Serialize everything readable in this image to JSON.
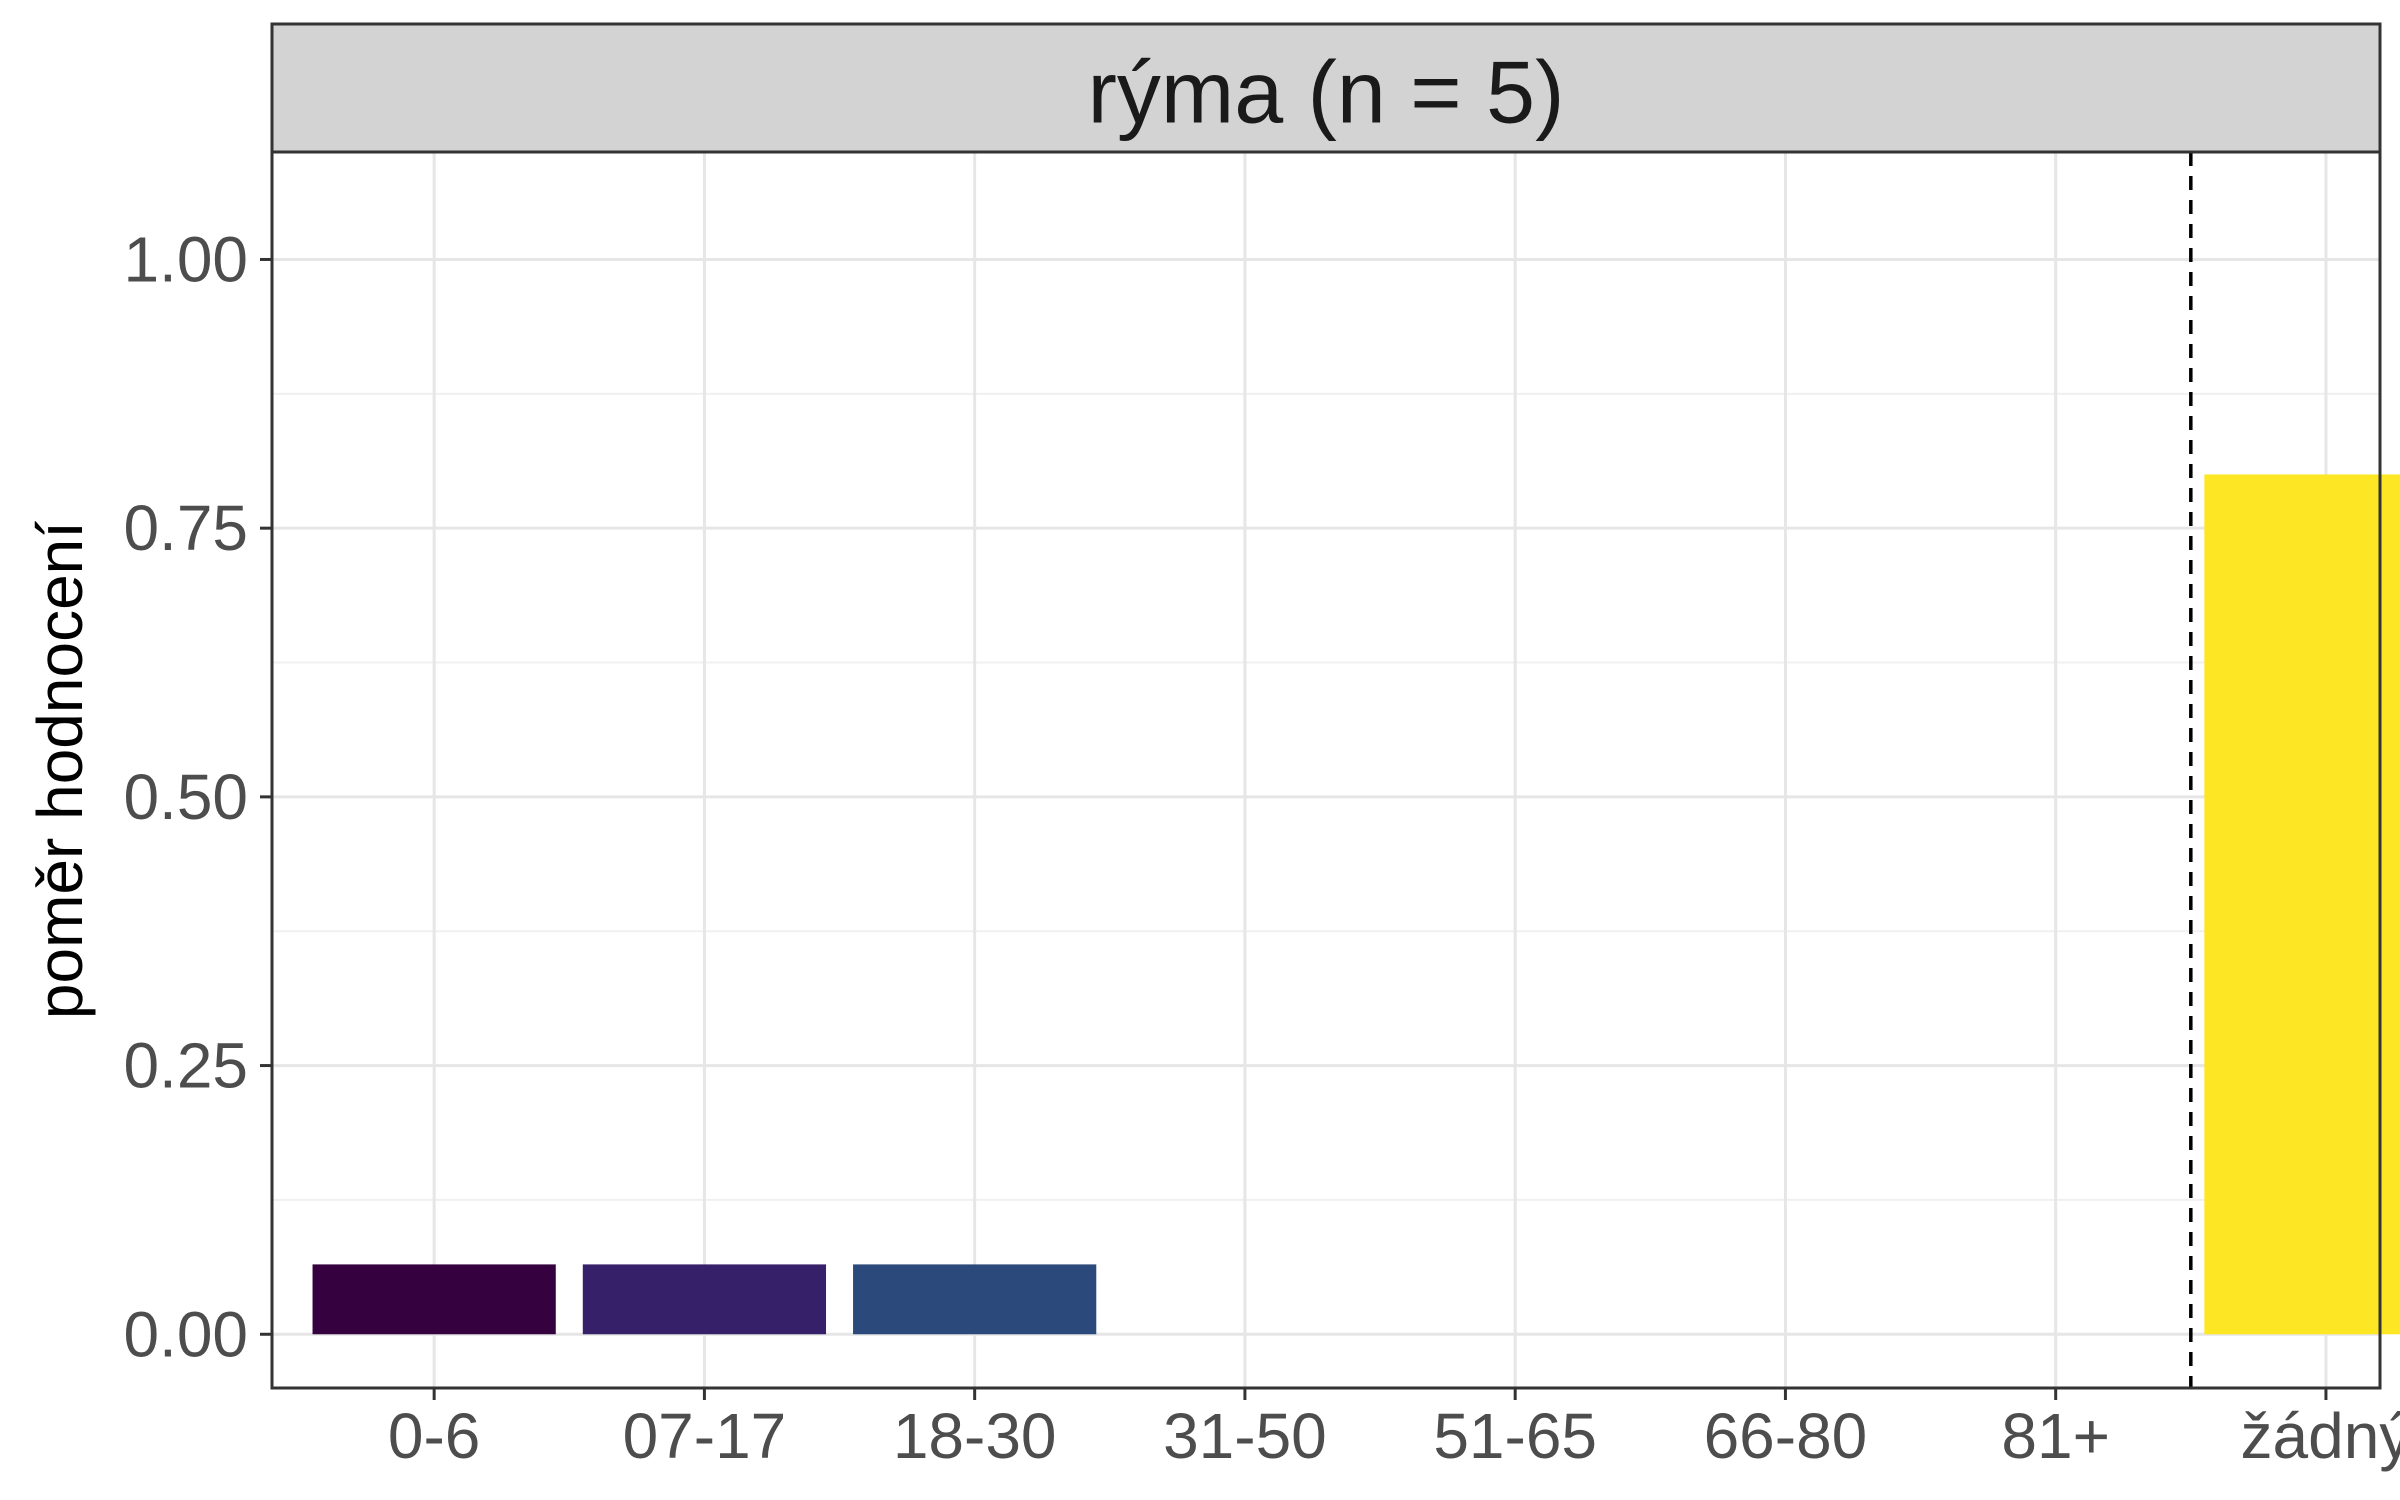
{
  "chart_data": {
    "type": "bar",
    "title": "rýma (n = 5)",
    "xlabel": "",
    "ylabel": "poměr hodnocení",
    "categories": [
      "0-6",
      "07-17",
      "18-30",
      "31-50",
      "51-65",
      "66-80",
      "81+",
      "žádný"
    ],
    "values": [
      0.065,
      0.065,
      0.065,
      0,
      0,
      0,
      0,
      0.8
    ],
    "bar_colors": [
      "#35023f",
      "#36206a",
      "#2b4a7b",
      "#25838e",
      "#22a884",
      "#7ad151",
      "#bddf26",
      "#fde725"
    ],
    "ylim": [
      -0.05,
      1.1
    ],
    "yticks": [
      0,
      0.25,
      0.5,
      0.75,
      1
    ],
    "ytick_labels": [
      "0.00",
      "0.25",
      "0.50",
      "0.75",
      "1.00"
    ],
    "grid": true,
    "reference_line": {
      "between": [
        "81+",
        "žádný"
      ],
      "style": "dashed",
      "color": "#000000"
    },
    "strip_color": "#d3d3d3",
    "panel_border_color": "#333333",
    "grid_major_color": "#e6e6e6",
    "grid_minor_color": "#f0f0f0"
  }
}
